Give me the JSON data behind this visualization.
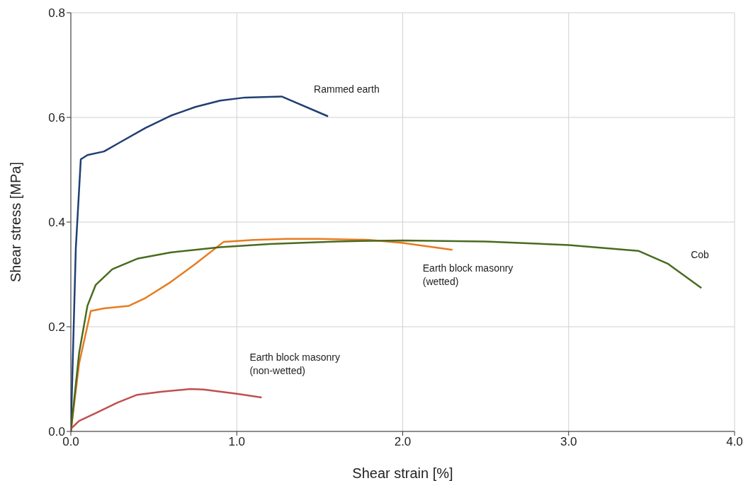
{
  "chart_data": {
    "type": "line",
    "xlabel": "Shear strain [%]",
    "ylabel": "Shear stress [MPa]",
    "xlim": [
      0,
      4
    ],
    "ylim": [
      0,
      0.8
    ],
    "xticks": [
      {
        "value": 0,
        "label": "0.0"
      },
      {
        "value": 1,
        "label": "1.0"
      },
      {
        "value": 2,
        "label": "2.0"
      },
      {
        "value": 3,
        "label": "3.0"
      },
      {
        "value": 4,
        "label": "4.0"
      }
    ],
    "yticks": [
      {
        "value": 0,
        "label": "0.0"
      },
      {
        "value": 0.2,
        "label": "0.2"
      },
      {
        "value": 0.4,
        "label": "0.4"
      },
      {
        "value": 0.6,
        "label": "0.6"
      },
      {
        "value": 0.8,
        "label": "0.8"
      }
    ],
    "grid": true,
    "marker": "none",
    "line_style": "solid",
    "series": [
      {
        "name": "Rammed earth",
        "color": "#1f3f73",
        "x": [
          0,
          0.03,
          0.06,
          0.1,
          0.2,
          0.3,
          0.45,
          0.6,
          0.75,
          0.9,
          1.05,
          1.27,
          1.55
        ],
        "values": [
          0,
          0.35,
          0.52,
          0.528,
          0.535,
          0.553,
          0.58,
          0.603,
          0.62,
          0.632,
          0.638,
          0.64,
          0.602
        ]
      },
      {
        "name": "Earth block masonry (wetted)",
        "color": "#e87b20",
        "x": [
          0,
          0.05,
          0.12,
          0.2,
          0.35,
          0.45,
          0.6,
          0.75,
          0.92,
          1.1,
          1.3,
          1.5,
          1.8,
          2.0,
          2.3
        ],
        "values": [
          0,
          0.13,
          0.23,
          0.235,
          0.24,
          0.255,
          0.285,
          0.32,
          0.362,
          0.366,
          0.368,
          0.368,
          0.366,
          0.36,
          0.347
        ]
      },
      {
        "name": "Cob",
        "color": "#4a6b1f",
        "x": [
          0,
          0.05,
          0.1,
          0.15,
          0.25,
          0.4,
          0.6,
          0.9,
          1.2,
          1.6,
          2.0,
          2.5,
          3.0,
          3.42,
          3.6,
          3.8
        ],
        "values": [
          0,
          0.15,
          0.24,
          0.28,
          0.31,
          0.33,
          0.342,
          0.352,
          0.358,
          0.363,
          0.365,
          0.363,
          0.356,
          0.345,
          0.32,
          0.274
        ]
      },
      {
        "name": "Earth block masonry (non-wetted)",
        "color": "#c0504d",
        "x": [
          0,
          0.05,
          0.15,
          0.28,
          0.4,
          0.55,
          0.72,
          0.8,
          1.0,
          1.15
        ],
        "values": [
          0.005,
          0.02,
          0.035,
          0.055,
          0.07,
          0.076,
          0.081,
          0.08,
          0.072,
          0.065
        ]
      }
    ]
  }
}
